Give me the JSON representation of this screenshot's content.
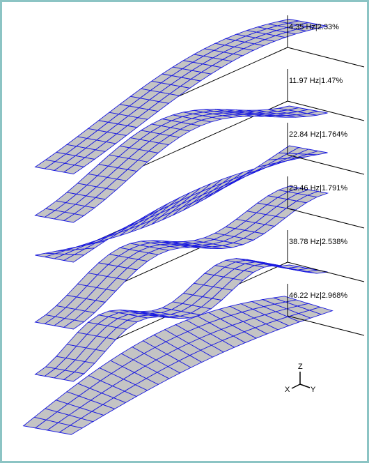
{
  "modes": [
    {
      "label": "4.35 Hz|2.33%"
    },
    {
      "label": "11.97 Hz|1.47%"
    },
    {
      "label": "22.84 Hz|1.764%"
    },
    {
      "label": "23.46 Hz|1.791%"
    },
    {
      "label": "38.78 Hz|2.538%"
    },
    {
      "label": "46.22 Hz|2.968%"
    }
  ],
  "triad": {
    "z": "Z",
    "x": "X",
    "y": "Y"
  }
}
